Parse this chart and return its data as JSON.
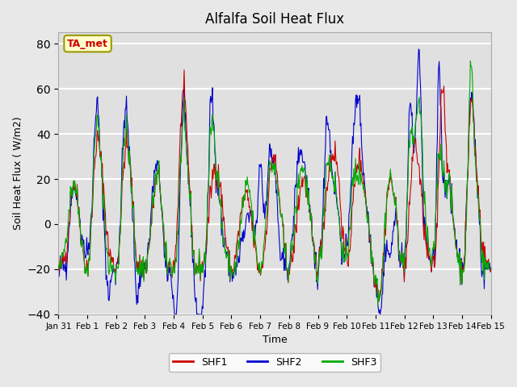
{
  "title": "Alfalfa Soil Heat Flux",
  "ylabel": "Soil Heat Flux ( W/m2)",
  "xlabel": "Time",
  "xlim_days": [
    0,
    15
  ],
  "ylim": [
    -40,
    85
  ],
  "yticks": [
    -40,
    -20,
    0,
    20,
    40,
    60,
    80
  ],
  "background_color": "#e8e8e8",
  "plot_bg_color": "#e0e0e0",
  "grid_color": "white",
  "shf1_color": "#cc0000",
  "shf2_color": "#0000cc",
  "shf3_color": "#00aa00",
  "tag_text": "TA_met",
  "tag_facecolor": "#ffffcc",
  "tag_edgecolor": "#999900",
  "tag_textcolor": "#cc0000",
  "legend_labels": [
    "SHF1",
    "SHF2",
    "SHF3"
  ],
  "x_tick_labels": [
    "Jan 31",
    "Feb 1",
    "Feb 2",
    "Feb 3",
    "Feb 4",
    "Feb 5",
    "Feb 6",
    "Feb 7",
    "Feb 8",
    "Feb 9",
    "Feb 10",
    "Feb 11",
    "Feb 12",
    "Feb 13",
    "Feb 14",
    "Feb 15"
  ]
}
